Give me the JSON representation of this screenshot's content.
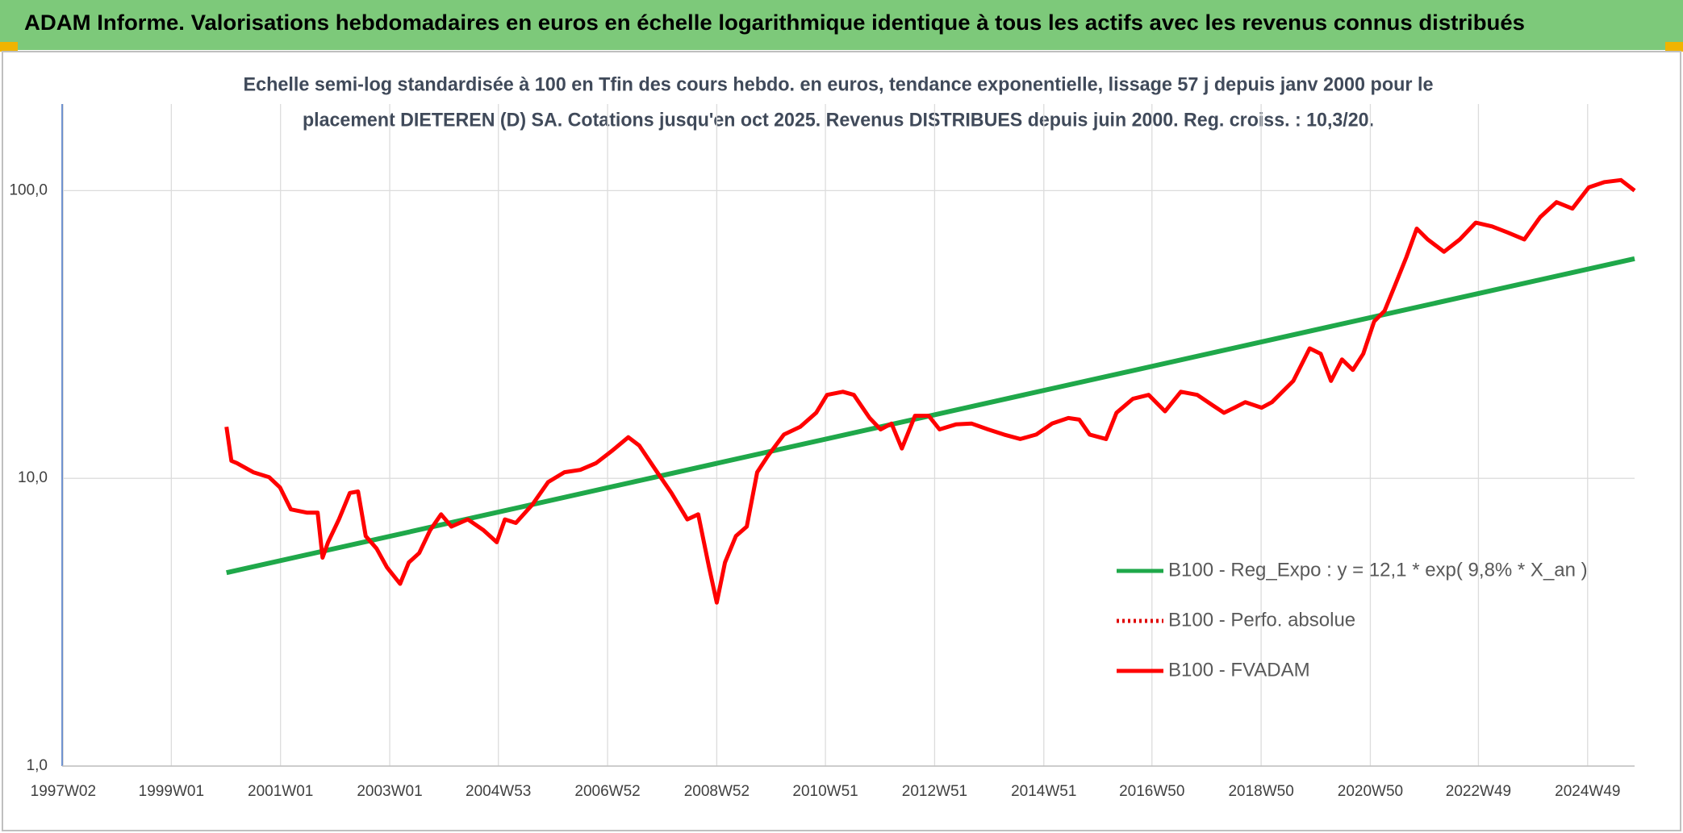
{
  "chart_data": {
    "type": "line",
    "title": "ADAM Informe. Valorisations hebdomadaires en euros en échelle logarithmique identique à tous les actifs avec les revenus connus distribués",
    "subtitle": [
      "Echelle semi-log standardisée à 100 en Tfin des cours hebdo. en euros, tendance exponentielle, lissage 57 j depuis janv 2000 pour le",
      "placement DIETEREN (D) SA. Cotations jusqu'en oct 2025. Revenus DISTRIBUES depuis juin 2000. Reg. croiss. : 10,3/20."
    ],
    "log_y": true,
    "grid": true,
    "legend_position": "right",
    "xlim": [
      1997.0,
      2025.8
    ],
    "xticks": [
      {
        "value": 1997.02,
        "label": "1997W02"
      },
      {
        "value": 1999.0,
        "label": "1999W01"
      },
      {
        "value": 2001.0,
        "label": "2001W01"
      },
      {
        "value": 2003.0,
        "label": "2003W01"
      },
      {
        "value": 2004.99,
        "label": "2004W53"
      },
      {
        "value": 2006.99,
        "label": "2006W52"
      },
      {
        "value": 2008.99,
        "label": "2008W52"
      },
      {
        "value": 2010.98,
        "label": "2010W51"
      },
      {
        "value": 2012.98,
        "label": "2012W51"
      },
      {
        "value": 2014.98,
        "label": "2014W51"
      },
      {
        "value": 2016.96,
        "label": "2016W50"
      },
      {
        "value": 2018.96,
        "label": "2018W50"
      },
      {
        "value": 2020.96,
        "label": "2020W50"
      },
      {
        "value": 2022.94,
        "label": "2022W49"
      },
      {
        "value": 2024.94,
        "label": "2024W49"
      }
    ],
    "ylim": [
      1,
      200
    ],
    "yticks": [
      {
        "value": 1,
        "label": "1,0"
      },
      {
        "value": 10,
        "label": "10,0"
      },
      {
        "value": 100,
        "label": "100,0"
      }
    ],
    "series": [
      {
        "name": "B100 - Reg_Expo : y = 12,1 * exp( 9,8% *  X_an )",
        "color": "#1fa84a",
        "dash": "solid",
        "x": [
          2000.01,
          2025.8
        ],
        "values": [
          4.7,
          58
        ]
      },
      {
        "name": "B100 - Perfo. absolue",
        "color": "#e00000",
        "dash": "dotted",
        "x": [],
        "values": []
      },
      {
        "name": "B100 - FVADAM",
        "color": "#ff0000",
        "dash": "solid",
        "x": [
          2000.01,
          2000.1,
          2000.2,
          2000.5,
          2000.79,
          2000.99,
          2001.19,
          2001.48,
          2001.68,
          2001.77,
          2001.87,
          2002.07,
          2002.27,
          2002.42,
          2002.56,
          2002.76,
          2002.95,
          2003.19,
          2003.35,
          2003.54,
          2003.74,
          2003.94,
          2004.13,
          2004.43,
          2004.72,
          2004.96,
          2005.11,
          2005.31,
          2005.61,
          2005.9,
          2006.2,
          2006.49,
          2006.78,
          2007.08,
          2007.37,
          2007.57,
          2007.87,
          2008.16,
          2008.45,
          2008.65,
          2008.85,
          2008.99,
          2009.14,
          2009.34,
          2009.54,
          2009.73,
          2009.93,
          2010.22,
          2010.52,
          2010.81,
          2011.01,
          2011.3,
          2011.5,
          2011.79,
          2011.99,
          2012.19,
          2012.38,
          2012.62,
          2012.87,
          2013.07,
          2013.37,
          2013.66,
          2013.96,
          2014.25,
          2014.55,
          2014.84,
          2015.13,
          2015.43,
          2015.63,
          2015.82,
          2016.12,
          2016.31,
          2016.61,
          2016.9,
          2017.2,
          2017.49,
          2017.79,
          2018.08,
          2018.28,
          2018.47,
          2018.67,
          2018.97,
          2019.16,
          2019.55,
          2019.85,
          2020.05,
          2020.24,
          2020.44,
          2020.64,
          2020.83,
          2021.03,
          2021.22,
          2021.42,
          2021.62,
          2021.81,
          2022.01,
          2022.31,
          2022.6,
          2022.89,
          2023.19,
          2023.48,
          2023.78,
          2024.07,
          2024.37,
          2024.66,
          2024.96,
          2025.25,
          2025.55,
          2025.8
        ],
        "values": [
          15.1,
          11.5,
          11.3,
          10.5,
          10.1,
          9.3,
          7.8,
          7.6,
          7.6,
          5.3,
          6.0,
          7.2,
          8.9,
          9.0,
          6.3,
          5.7,
          4.9,
          4.3,
          5.1,
          5.5,
          6.6,
          7.5,
          6.8,
          7.2,
          6.6,
          6.0,
          7.2,
          7.0,
          8.1,
          9.7,
          10.5,
          10.7,
          11.3,
          12.5,
          13.9,
          13.0,
          10.7,
          8.9,
          7.2,
          7.5,
          4.9,
          3.7,
          5.1,
          6.3,
          6.8,
          10.5,
          12.0,
          14.2,
          15.1,
          16.9,
          19.5,
          20.0,
          19.5,
          16.2,
          14.8,
          15.5,
          12.7,
          16.5,
          16.5,
          14.8,
          15.4,
          15.5,
          14.8,
          14.2,
          13.7,
          14.2,
          15.5,
          16.2,
          16.0,
          14.2,
          13.7,
          16.9,
          18.9,
          19.5,
          17.1,
          20.0,
          19.5,
          17.9,
          16.9,
          17.6,
          18.4,
          17.6,
          18.4,
          21.8,
          28.3,
          27.1,
          21.8,
          25.9,
          23.8,
          27.1,
          35.1,
          38.2,
          47.3,
          58.7,
          73.8,
          67.7,
          61.3,
          67.7,
          77.4,
          75.1,
          71.5,
          67.7,
          80.8,
          91.2,
          86.6,
          102.6,
          107.1,
          108.8,
          100.0
        ]
      }
    ]
  }
}
